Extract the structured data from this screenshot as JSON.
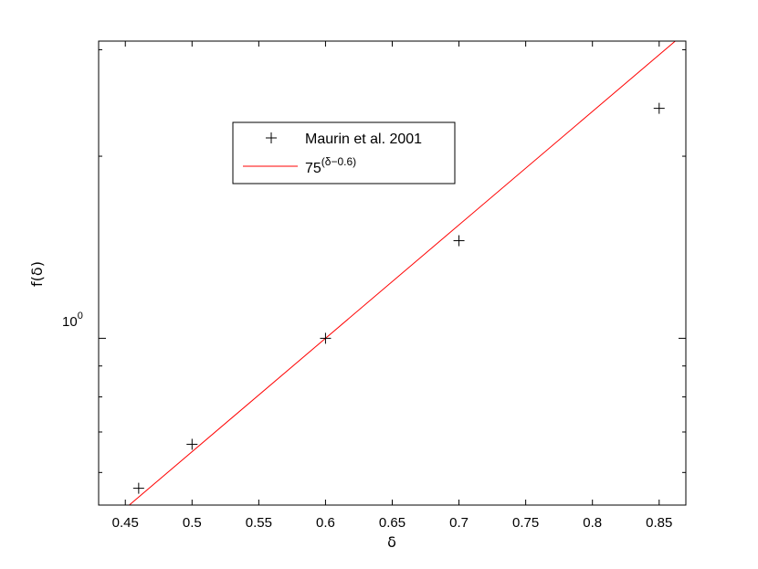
{
  "chart_data": {
    "type": "scatter",
    "xlabel": "δ",
    "ylabel": "f(δ)",
    "y_scale": "log",
    "xlim": [
      0.43,
      0.87
    ],
    "ylim": [
      0.53,
      3.1
    ],
    "x_ticks": [
      "0.45",
      "0.5",
      "0.55",
      "0.6",
      "0.65",
      "0.7",
      "0.75",
      "0.8",
      "0.85"
    ],
    "y_tick_label": {
      "base": "10",
      "exponent": "0"
    },
    "legend_position": "top-center",
    "series": [
      {
        "name": "Maurin et al. 2001",
        "type": "scatter",
        "marker": "+",
        "color": "#000000",
        "x": [
          0.46,
          0.5,
          0.6,
          0.7,
          0.85
        ],
        "y": [
          0.565,
          0.668,
          1.0,
          1.45,
          2.4
        ]
      },
      {
        "name_parts": {
          "base": "75",
          "exponent": "(δ−0.6)"
        },
        "type": "line",
        "color": "#ff0000",
        "function": "75^(δ−0.6)",
        "x": [
          0.43,
          0.87
        ]
      }
    ]
  }
}
